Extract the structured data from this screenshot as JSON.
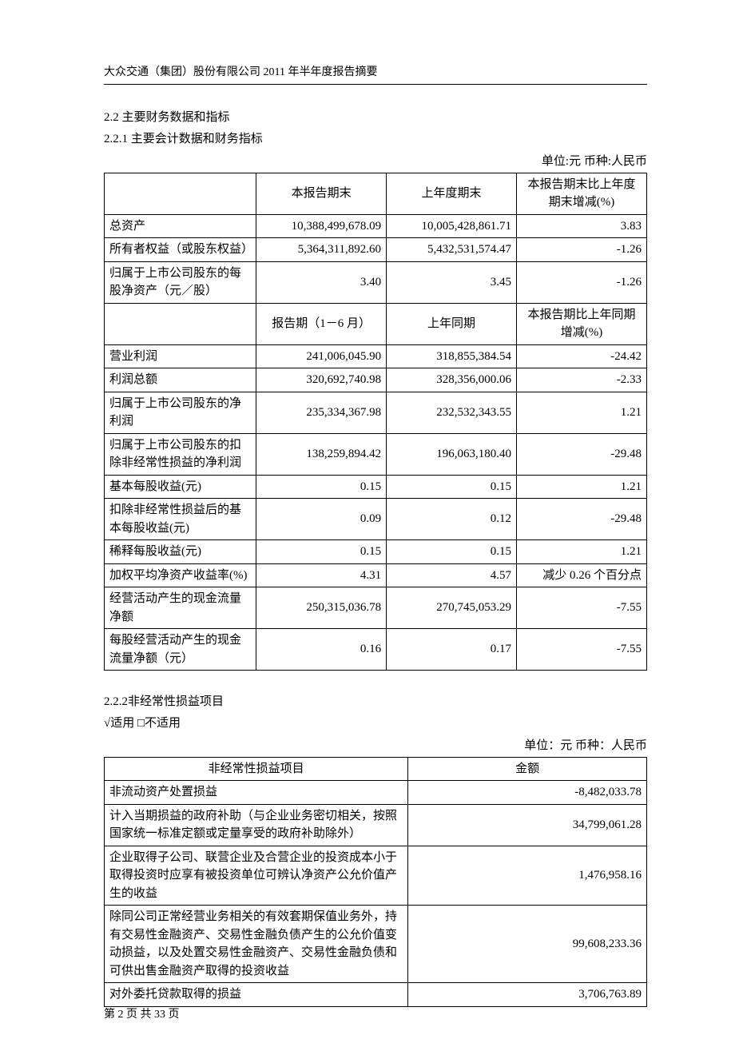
{
  "header": {
    "text": "大众交通（集团）股份有限公司 2011 年半年度报告摘要"
  },
  "s22": {
    "heading": "2.2 主要财务数据和指标"
  },
  "s221": {
    "heading": "2.2.1 主要会计数据和财务指标",
    "unit": "单位:元 币种:人民币",
    "hdr1": {
      "c1": "",
      "c2": "本报告期末",
      "c3": "上年度期末",
      "c4": "本报告期末比上年度期末增减(%)"
    },
    "r1": {
      "a": "总资产",
      "b": "10,388,499,678.09",
      "c": "10,005,428,861.71",
      "d": "3.83"
    },
    "r2": {
      "a": "所有者权益（或股东权益）",
      "b": "5,364,311,892.60",
      "c": "5,432,531,574.47",
      "d": "-1.26"
    },
    "r3": {
      "a": "归属于上市公司股东的每股净资产（元／股）",
      "b": "3.40",
      "c": "3.45",
      "d": "-1.26"
    },
    "hdr2": {
      "c1": "",
      "c2": "报告期（1－6 月）",
      "c3": "上年同期",
      "c4": "本报告期比上年同期增减(%)"
    },
    "r4": {
      "a": "营业利润",
      "b": "241,006,045.90",
      "c": "318,855,384.54",
      "d": "-24.42"
    },
    "r5": {
      "a": "利润总额",
      "b": "320,692,740.98",
      "c": "328,356,000.06",
      "d": "-2.33"
    },
    "r6": {
      "a": "归属于上市公司股东的净利润",
      "b": "235,334,367.98",
      "c": "232,532,343.55",
      "d": "1.21"
    },
    "r7": {
      "a": "归属于上市公司股东的扣除非经常性损益的净利润",
      "b": "138,259,894.42",
      "c": "196,063,180.40",
      "d": "-29.48"
    },
    "r8": {
      "a": "基本每股收益(元)",
      "b": "0.15",
      "c": "0.15",
      "d": "1.21"
    },
    "r9": {
      "a": "扣除非经常性损益后的基本每股收益(元)",
      "b": "0.09",
      "c": "0.12",
      "d": "-29.48"
    },
    "r10": {
      "a": "稀释每股收益(元)",
      "b": "0.15",
      "c": "0.15",
      "d": "1.21"
    },
    "r11": {
      "a": "加权平均净资产收益率(%)",
      "b": "4.31",
      "c": "4.57",
      "d": "减少 0.26 个百分点"
    },
    "r12": {
      "a": "经营活动产生的现金流量净额",
      "b": "250,315,036.78",
      "c": "270,745,053.29",
      "d": "-7.55"
    },
    "r13": {
      "a": "每股经营活动产生的现金流量净额（元）",
      "b": "0.16",
      "c": "0.17",
      "d": "-7.55"
    }
  },
  "s222": {
    "heading": "2.2.2非经常性损益项目",
    "applicable": "√适用 □不适用",
    "unit": "单位：元 币种：人民币",
    "hdr": {
      "a": "非经常性损益项目",
      "b": "金额"
    },
    "r1": {
      "a": "非流动资产处置损益",
      "b": "-8,482,033.78"
    },
    "r2": {
      "a": "计入当期损益的政府补助（与企业业务密切相关，按照国家统一标准定额或定量享受的政府补助除外）",
      "b": "34,799,061.28"
    },
    "r3": {
      "a": "企业取得子公司、联营企业及合营企业的投资成本小于取得投资时应享有被投资单位可辨认净资产公允价值产生的收益",
      "b": "1,476,958.16"
    },
    "r4": {
      "a": "除同公司正常经营业务相关的有效套期保值业务外，持有交易性金融资产、交易性金融负债产生的公允价值变动损益，以及处置交易性金融资产、交易性金融负债和可供出售金融资产取得的投资收益",
      "b": "99,608,233.36"
    },
    "r5": {
      "a": "对外委托贷款取得的损益",
      "b": "3,706,763.89"
    }
  },
  "footer": {
    "text": "第 2 页 共 33 页"
  }
}
